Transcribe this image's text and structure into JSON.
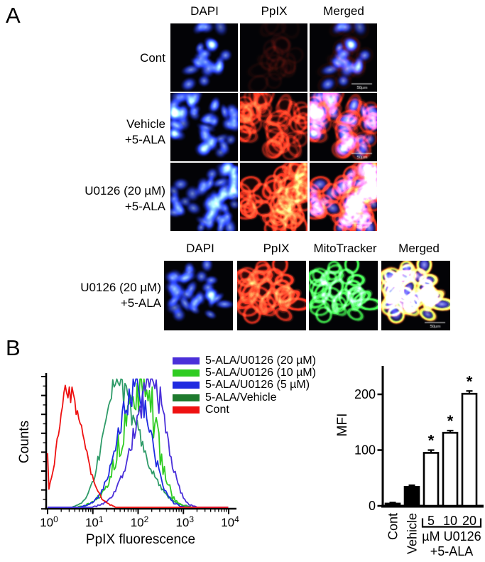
{
  "panelA": {
    "label": "A",
    "scale_bar_label": "50µm",
    "block1": {
      "col_headers": [
        "DAPI",
        "PpIX",
        "Merged"
      ],
      "rows": [
        {
          "label_lines": [
            "Cont"
          ]
        },
        {
          "label_lines": [
            "Vehicle",
            "+5-ALA"
          ]
        },
        {
          "label_lines": [
            "U0126 (20 µM)",
            "+5-ALA"
          ]
        }
      ]
    },
    "block2": {
      "col_headers": [
        "DAPI",
        "PpIX",
        "MitoTracker",
        "Merged"
      ],
      "row_label_lines": [
        "U0126 (20 µM)",
        "+5-ALA"
      ]
    }
  },
  "panelB": {
    "label": "B"
  },
  "chart_data": [
    {
      "type": "line",
      "subtype": "flow-cytometry-histogram",
      "xlabel": "PpIX fluorescence",
      "ylabel": "Counts",
      "x_scale": "log10",
      "xlim": [
        1,
        10000
      ],
      "x_ticks": [
        "10^0",
        "10^1",
        "10^2",
        "10^3",
        "10^4"
      ],
      "y_ticks_unlabeled": true,
      "legend_position": "top-right",
      "series": [
        {
          "name": "5-ALA/U0126 (20 µM)",
          "color": "#4A2FD9",
          "mode_x": 215,
          "log10_center": 2.33,
          "log10_sigma_left": 0.42,
          "log10_sigma_right": 0.3,
          "peak": 0.97,
          "noise": 0.3
        },
        {
          "name": "5-ALA/U0126 (10 µM)",
          "color": "#2FCC22",
          "mode_x": 130,
          "log10_center": 2.11,
          "log10_sigma_left": 0.45,
          "log10_sigma_right": 0.3,
          "peak": 0.97,
          "noise": 0.5
        },
        {
          "name": "5-ALA/U0126 (5 µM)",
          "color": "#1F2BE0",
          "mode_x": 90,
          "log10_center": 1.95,
          "log10_sigma_left": 0.38,
          "log10_sigma_right": 0.33,
          "peak": 0.95,
          "noise": 0.3
        },
        {
          "name": "5-ALA/Vehicle",
          "color": "#2E9B68",
          "swatch_color": "#1E7A2E",
          "mode_x": 33,
          "log10_center": 1.52,
          "log10_sigma_left": 0.3,
          "log10_sigma_right": 0.52,
          "peak": 0.93,
          "noise": 0.3
        },
        {
          "name": "Cont",
          "color": "#EE1111",
          "mode_x": 2.8,
          "log10_center": 0.45,
          "log10_sigma_left": 0.22,
          "log10_sigma_right": 0.33,
          "peak": 0.93,
          "noise": 0.18,
          "left_edge_spike": 0.43
        }
      ]
    },
    {
      "type": "bar",
      "ylabel": "MFI",
      "yticks": [
        0,
        100,
        200
      ],
      "ylim": [
        0,
        250
      ],
      "categories": [
        "Cont",
        "Vehicle",
        "5",
        "10",
        "20"
      ],
      "values": [
        4,
        34,
        95,
        131,
        201
      ],
      "errors": [
        2,
        3,
        5,
        4,
        5
      ],
      "bar_fills": [
        "#000000",
        "#000000",
        "#ffffff",
        "#ffffff",
        "#ffffff"
      ],
      "significance": [
        "",
        "",
        "*",
        "*",
        "*"
      ],
      "rotated_categories": [
        "Cont",
        "Vehicle"
      ],
      "group_label_line1": "µM U0126",
      "group_label_line2": "+5-ALA"
    }
  ]
}
